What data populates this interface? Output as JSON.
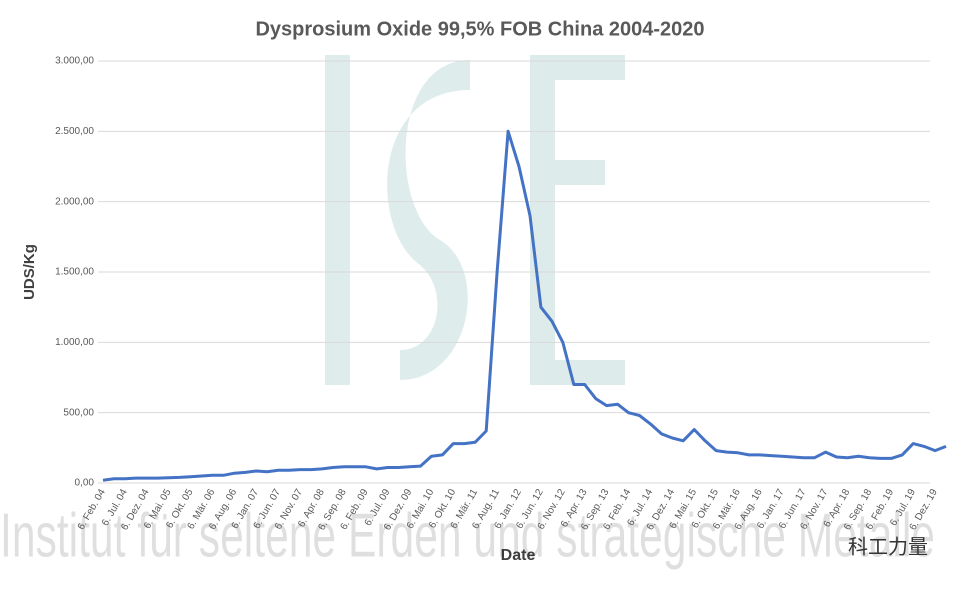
{
  "chart_data": {
    "type": "line",
    "title": "Dysprosium Oxide 99,5% FOB China 2004-2020",
    "x_label": "Date",
    "y_label": "UDS/Kg",
    "watermark": "Institut für seltene Erden und strategische Metalle",
    "badge": "科工力量",
    "categories": [
      "6. Feb. 04",
      null,
      "6. Jul. 04",
      null,
      "6. Dez. 04",
      null,
      "6. Mai. 05",
      null,
      "6. Okt. 05",
      null,
      "6. Mär. 06",
      null,
      "6. Aug. 06",
      null,
      "6. Jan. 07",
      null,
      "6. Jun. 07",
      null,
      "6. Nov. 07",
      null,
      "6. Apr. 08",
      null,
      "6. Sep. 08",
      null,
      "6. Feb. 09",
      null,
      "6. Jul. 09",
      null,
      "6. Dez. 09",
      null,
      "6. Mai. 10",
      null,
      "6. Okt. 10",
      null,
      "6. Mär. 11",
      null,
      "6. Aug. 11",
      null,
      "6. Jan. 12",
      null,
      "6. Jun. 12",
      null,
      "6. Nov. 12",
      null,
      "6. Apr. 13",
      null,
      "6. Sep. 13",
      null,
      "6. Feb. 14",
      null,
      "6. Jul. 14",
      null,
      "6. Dez. 14",
      null,
      "6. Mai. 15",
      null,
      "6. Okt. 15",
      null,
      "6. Mär. 16",
      null,
      "6. Aug. 16",
      null,
      "6. Jan. 17",
      null,
      "6. Jun. 17",
      null,
      "6. Nov. 17",
      null,
      "6. Apr. 18",
      null,
      "6. Sep. 18",
      null,
      "6. Feb. 19",
      null,
      "6. Jul. 19",
      null,
      "6. Dez. 19",
      null
    ],
    "series": [
      {
        "name": "Dysprosium Oxide",
        "color": "#4472c4",
        "values": [
          20,
          30,
          30,
          35,
          35,
          35,
          38,
          40,
          45,
          50,
          55,
          55,
          70,
          75,
          85,
          80,
          90,
          90,
          95,
          95,
          100,
          110,
          115,
          115,
          115,
          100,
          110,
          110,
          115,
          120,
          190,
          200,
          280,
          280,
          290,
          370,
          1500,
          2500,
          2250,
          1900,
          1250,
          1150,
          1000,
          700,
          700,
          600,
          550,
          560,
          500,
          480,
          420,
          350,
          320,
          300,
          380,
          300,
          230,
          220,
          215,
          200,
          200,
          195,
          190,
          185,
          180,
          180,
          220,
          185,
          180,
          190,
          180,
          175,
          175,
          200,
          280,
          260,
          230,
          260
        ]
      }
    ],
    "ylim": [
      0,
      3000
    ],
    "yticks": [
      {
        "value": 0,
        "label": "0,00"
      },
      {
        "value": 500,
        "label": "500,00"
      },
      {
        "value": 1000,
        "label": "1.000,00"
      },
      {
        "value": 1500,
        "label": "1.500,00"
      },
      {
        "value": 2000,
        "label": "2.000,00"
      },
      {
        "value": 2500,
        "label": "2.500,00"
      },
      {
        "value": 3000,
        "label": "3.000,00"
      }
    ],
    "grid": true
  }
}
